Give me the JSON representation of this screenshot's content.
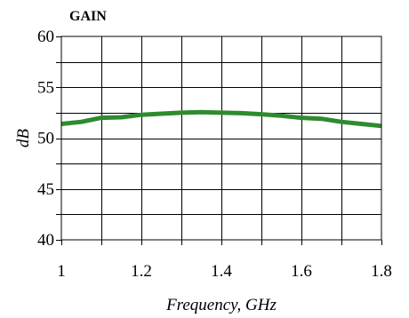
{
  "chart_data": {
    "type": "line",
    "title": "GAIN",
    "xlabel": "Frequency, GHz",
    "ylabel": "dB",
    "xlim": [
      1,
      1.8
    ],
    "ylim": [
      40,
      60
    ],
    "x_ticks": [
      1,
      1.1,
      1.2,
      1.3,
      1.4,
      1.5,
      1.6,
      1.7,
      1.8
    ],
    "x_tick_labels": [
      "1",
      "1.2",
      "1.4",
      "1.6",
      "1.8"
    ],
    "x_tick_label_values": [
      1,
      1.2,
      1.4,
      1.6,
      1.8
    ],
    "y_ticks": [
      40,
      42.5,
      45,
      47.5,
      50,
      52.5,
      55,
      57.5,
      60
    ],
    "y_tick_labels": [
      "40",
      "45",
      "50",
      "55",
      "60"
    ],
    "y_tick_label_values": [
      40,
      45,
      50,
      55,
      60
    ],
    "grid": true,
    "series": [
      {
        "color": "#2e8b2e",
        "x": [
          1.0,
          1.05,
          1.1,
          1.15,
          1.2,
          1.25,
          1.3,
          1.35,
          1.4,
          1.45,
          1.5,
          1.55,
          1.6,
          1.65,
          1.7,
          1.75,
          1.8
        ],
        "y": [
          51.4,
          51.6,
          52.0,
          52.05,
          52.3,
          52.4,
          52.5,
          52.55,
          52.5,
          52.45,
          52.35,
          52.2,
          52.0,
          51.9,
          51.6,
          51.4,
          51.2
        ]
      }
    ]
  }
}
